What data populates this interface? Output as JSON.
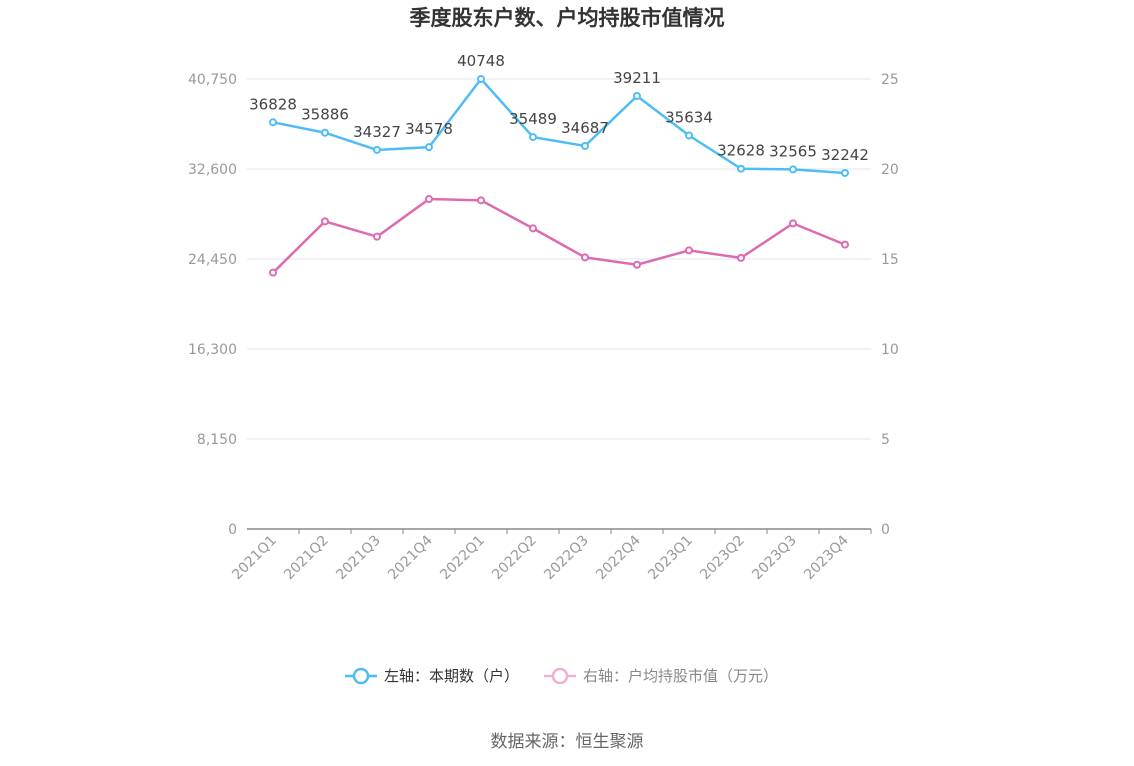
{
  "chart_data": {
    "type": "line",
    "title": "季度股东户数、户均持股市值情况",
    "categories": [
      "2021Q1",
      "2021Q2",
      "2021Q3",
      "2021Q4",
      "2022Q1",
      "2022Q2",
      "2022Q3",
      "2022Q4",
      "2023Q1",
      "2023Q2",
      "2023Q3",
      "2023Q4"
    ],
    "left_axis": {
      "ticks": [
        "0",
        "8,150",
        "16,300",
        "24,450",
        "32,600",
        "40,750"
      ],
      "range": [
        0,
        40750
      ]
    },
    "right_axis": {
      "ticks": [
        "0",
        "5",
        "10",
        "15",
        "20",
        "25"
      ],
      "range": [
        0,
        25
      ]
    },
    "series": [
      {
        "name": "左轴：本期数（户）",
        "axis": "left",
        "color": "#4fbdf5",
        "values": [
          36828,
          35886,
          34327,
          34578,
          40748,
          35489,
          34687,
          39211,
          35634,
          32628,
          32565,
          32242
        ],
        "labels": [
          "36828",
          "35886",
          "34327",
          "34578",
          "40748",
          "35489",
          "34687",
          "39211",
          "35634",
          "32628",
          "32565",
          "32242"
        ]
      },
      {
        "name": "右轴：户均持股市值（万元）",
        "axis": "right",
        "color": "#dc6bb0",
        "values": [
          14.24,
          17.09,
          16.24,
          18.33,
          18.26,
          16.7,
          15.09,
          14.68,
          15.48,
          15.06,
          16.98,
          15.8
        ]
      }
    ],
    "grid": true,
    "legend_position": "bottom",
    "source": "数据来源：恒生聚源"
  }
}
